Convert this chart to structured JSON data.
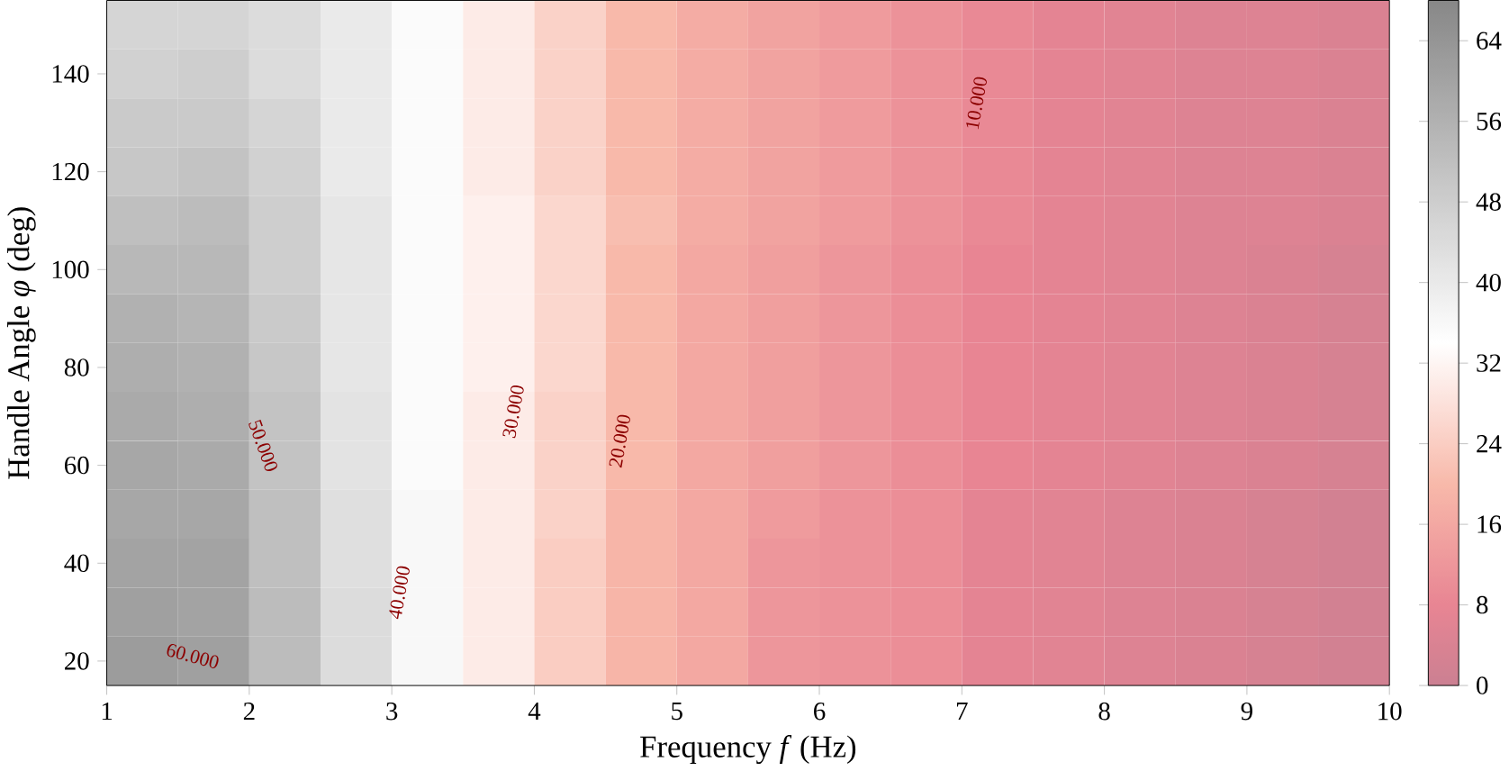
{
  "chart_data": {
    "type": "heatmap",
    "xlabel": "Frequency *f* (Hz)",
    "ylabel": "Handle Angle *φ* (deg)",
    "x": [
      1.25,
      1.75,
      2.25,
      2.75,
      3.25,
      3.75,
      4.25,
      4.75,
      5.25,
      5.75,
      6.25,
      6.75,
      7.25,
      7.75,
      8.25,
      8.75,
      9.25,
      9.75
    ],
    "y": [
      150,
      140,
      130,
      120,
      110,
      100,
      90,
      80,
      70,
      60,
      50,
      40,
      30,
      20
    ],
    "cells": [
      [
        46,
        46,
        44,
        40,
        35,
        30,
        25,
        20,
        17,
        15,
        13,
        11,
        9,
        7,
        6,
        5,
        5,
        4
      ],
      [
        47,
        48,
        44,
        40,
        35,
        30,
        25,
        20,
        17,
        15,
        13,
        11,
        9,
        7,
        6,
        5,
        5,
        4
      ],
      [
        49,
        49,
        46,
        40,
        35,
        30,
        25,
        20,
        17,
        15,
        13,
        11,
        9,
        7,
        6,
        5,
        5,
        4
      ],
      [
        50,
        51,
        47,
        40,
        35,
        30,
        25,
        20,
        17,
        15,
        13,
        11,
        9,
        7,
        6,
        5,
        5,
        4
      ],
      [
        52,
        53,
        48,
        41,
        35,
        31,
        26,
        21,
        17,
        15,
        13,
        11,
        9,
        7,
        6,
        5,
        5,
        4
      ],
      [
        54,
        54,
        48,
        41,
        35,
        31,
        26,
        20,
        16,
        14,
        12,
        10,
        8,
        7,
        6,
        5,
        4,
        3
      ],
      [
        56,
        55,
        49,
        41,
        35,
        31,
        26,
        20,
        16,
        14,
        12,
        10,
        8,
        7,
        6,
        5,
        4,
        3
      ],
      [
        57,
        56,
        50,
        41,
        35,
        31,
        26,
        20,
        16,
        14,
        12,
        10,
        8,
        7,
        6,
        5,
        4,
        3
      ],
      [
        58,
        57,
        51,
        42,
        35,
        30,
        25,
        20,
        16,
        14,
        12,
        10,
        8,
        7,
        6,
        5,
        4,
        3
      ],
      [
        59,
        58,
        51,
        42,
        35,
        30,
        25,
        20,
        16,
        14,
        12,
        10,
        8,
        7,
        6,
        5,
        4,
        3
      ],
      [
        59,
        59,
        52,
        43,
        36,
        30,
        25,
        19,
        16,
        13,
        11,
        10,
        7,
        6,
        5,
        4,
        3,
        2
      ],
      [
        60,
        60,
        52,
        43,
        36,
        30,
        24,
        19,
        16,
        12,
        11,
        10,
        7,
        6,
        5,
        4,
        3,
        2
      ],
      [
        61,
        60,
        53,
        44,
        36,
        30,
        24,
        19,
        16,
        12,
        11,
        10,
        7,
        6,
        5,
        4,
        3,
        2
      ],
      [
        62,
        61,
        53,
        44,
        36,
        30,
        24,
        19,
        16,
        12,
        11,
        10,
        7,
        6,
        5,
        4,
        3,
        2
      ]
    ],
    "xlim": [
      1,
      10
    ],
    "ylim": [
      15,
      155
    ],
    "xticks": [
      1,
      2,
      3,
      4,
      5,
      6,
      7,
      8,
      9,
      10
    ],
    "yticks": [
      20,
      40,
      60,
      80,
      100,
      120,
      140
    ],
    "clim": [
      0,
      68
    ],
    "cticks": [
      0,
      8,
      16,
      24,
      32,
      40,
      48,
      56,
      64
    ],
    "annotations": [
      "60.000",
      "50.000",
      "40.000",
      "30.000",
      "20.000",
      "10.000"
    ]
  }
}
